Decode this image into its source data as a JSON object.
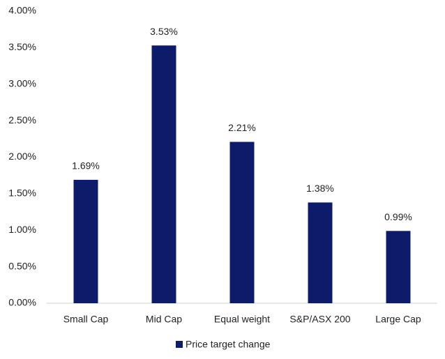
{
  "chart_data": {
    "type": "bar",
    "categories": [
      "Small Cap",
      "Mid Cap",
      "Equal weight",
      "S&P/ASX 200",
      "Large Cap"
    ],
    "series": [
      {
        "name": "Price target change",
        "color": "#0c1c6b",
        "values": [
          1.69,
          3.53,
          2.21,
          1.38,
          0.99
        ],
        "value_labels": [
          "1.69%",
          "3.53%",
          "2.21%",
          "1.38%",
          "0.99%"
        ]
      }
    ],
    "ylim": [
      0,
      4
    ],
    "yticks": [
      {
        "value": 0,
        "label": "0.00%"
      },
      {
        "value": 0.5,
        "label": "0.50%"
      },
      {
        "value": 1,
        "label": "1.00%"
      },
      {
        "value": 1.5,
        "label": "1.50%"
      },
      {
        "value": 2,
        "label": "2.00%"
      },
      {
        "value": 2.5,
        "label": "2.50%"
      },
      {
        "value": 3,
        "label": "3.00%"
      },
      {
        "value": 3.5,
        "label": "3.50%"
      },
      {
        "value": 4,
        "label": "4.00%"
      }
    ],
    "grid": false,
    "legend": "bottom"
  }
}
